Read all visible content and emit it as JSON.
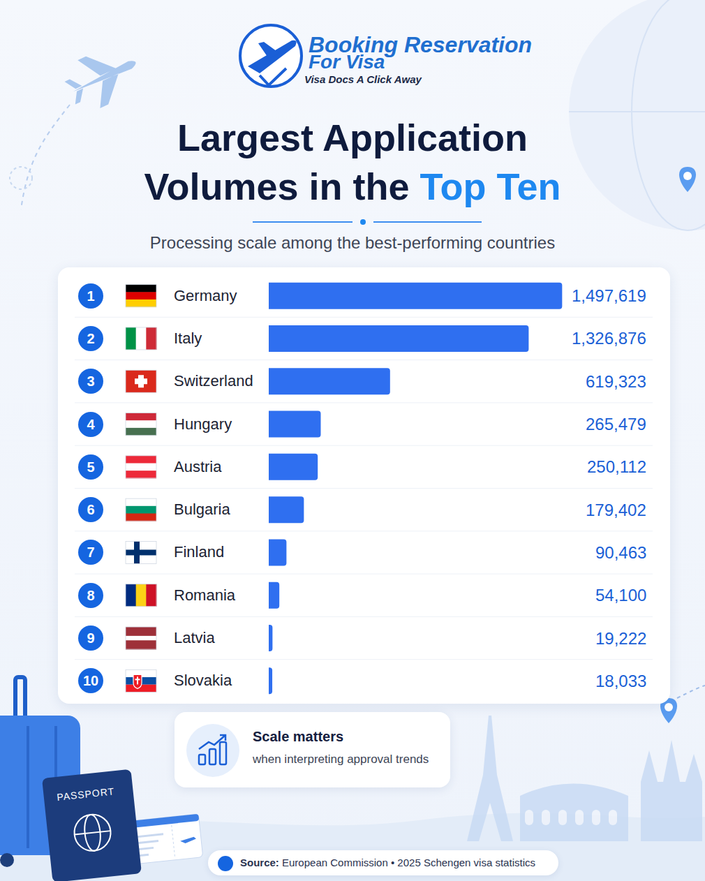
{
  "header": {
    "brand": "Booking Reservation",
    "brand_line2": "For Visa",
    "tagline": "Visa Docs A Click Away"
  },
  "chart_data": {
    "type": "bar",
    "orientation": "horizontal",
    "title": "Largest Application Volumes in the Top Ten",
    "subtitle": "Processing scale among the best-performing countries",
    "ranks": [
      1,
      2,
      3,
      4,
      5,
      6,
      7,
      8,
      9,
      10
    ],
    "categories": [
      "Germany",
      "Italy",
      "Switzerland",
      "Hungary",
      "Austria",
      "Bulgaria",
      "Finland",
      "Romania",
      "Latvia",
      "Slovakia"
    ],
    "values": [
      1497619,
      1326876,
      619323,
      265479,
      250112,
      179402,
      90463,
      54100,
      19222,
      18033
    ],
    "value_labels": [
      "1,497,619",
      "1,326,876",
      "619,323",
      "265,479",
      "250,112",
      "179,402",
      "90,463",
      "54,100",
      "19,222",
      "18,033"
    ],
    "color": "#2f6ff0",
    "xlim": [
      0,
      1500000
    ],
    "data_labels": true,
    "tick_labels": false,
    "grid": false
  },
  "callout": {
    "title": "Scale matters",
    "text": "when interpreting approval trends"
  },
  "source": {
    "label": "Source:",
    "text": "European Commission • 2025 Schengen visa statistics"
  },
  "decor": {
    "passport": "PASSPORT"
  }
}
